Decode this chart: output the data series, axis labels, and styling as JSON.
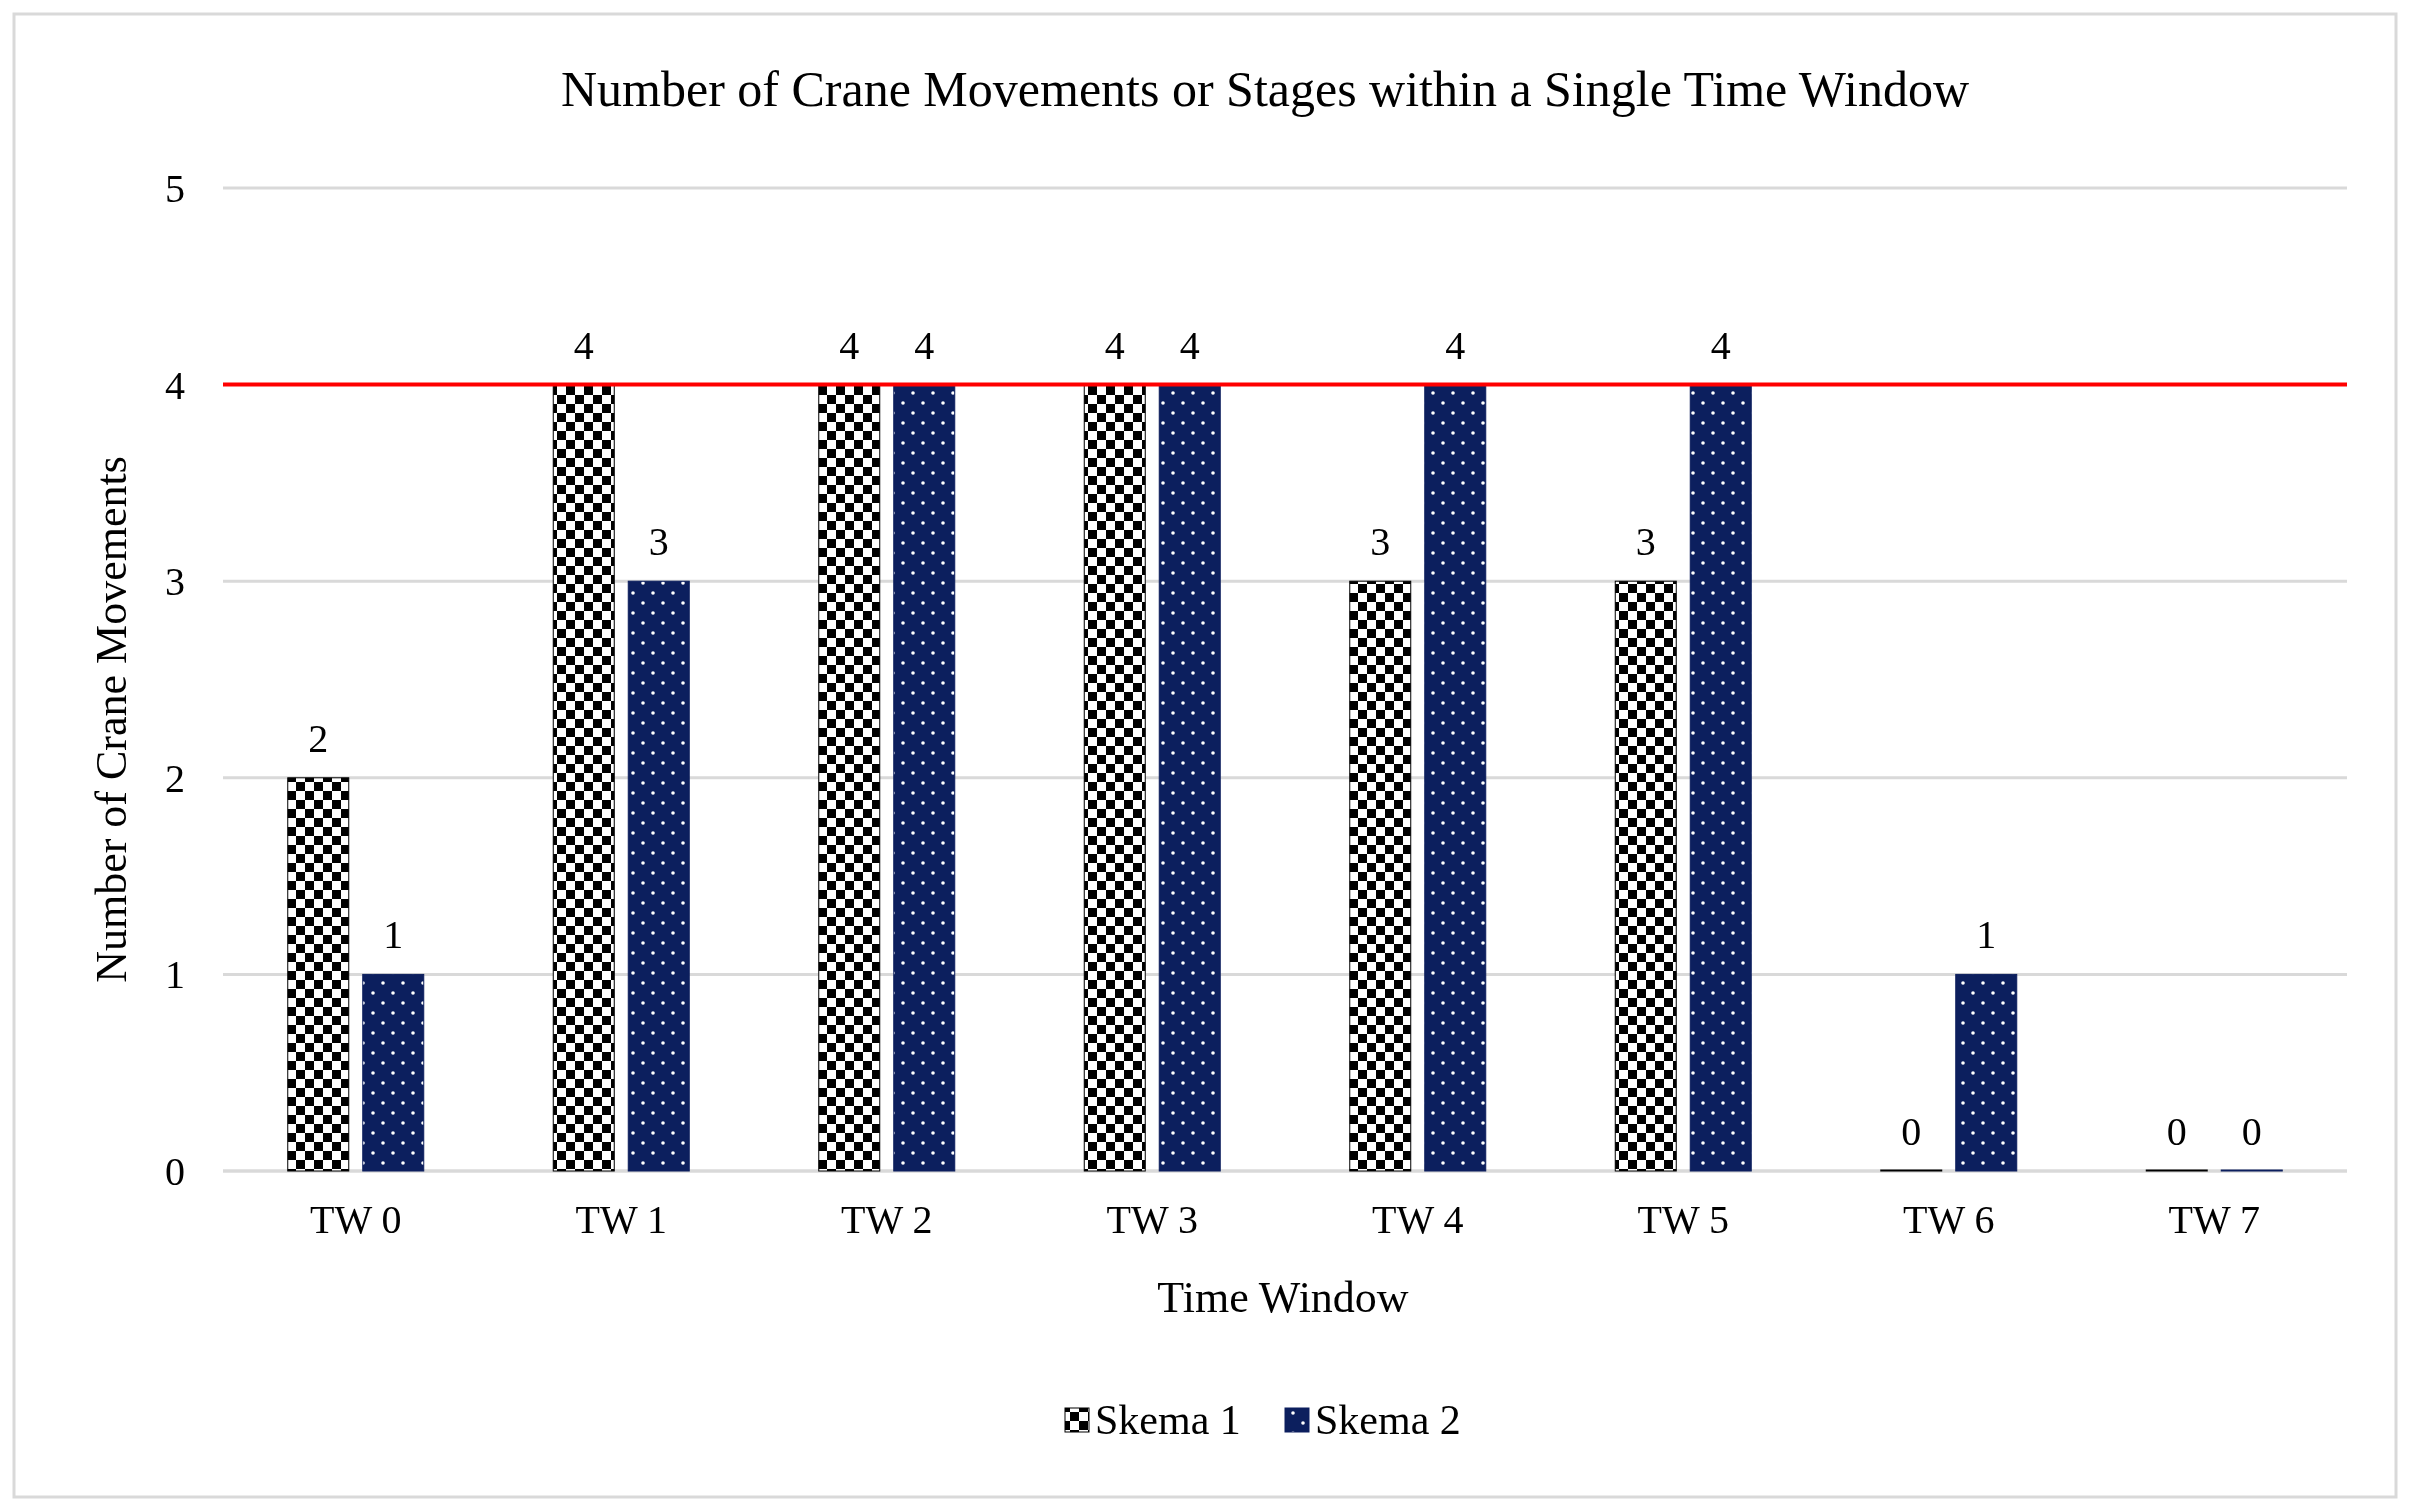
{
  "chart_data": {
    "type": "bar",
    "title": "Number of Crane Movements or Stages within a Single Time Window",
    "xlabel": "Time Window",
    "ylabel": "Number of Crane Movements",
    "categories": [
      "TW 0",
      "TW 1",
      "TW 2",
      "TW 3",
      "TW 4",
      "TW 5",
      "TW 6",
      "TW 7"
    ],
    "series": [
      {
        "name": "Skema 1",
        "color": "#000000",
        "values": [
          2,
          4,
          4,
          4,
          3,
          3,
          0,
          0
        ]
      },
      {
        "name": "Skema 2",
        "color": "#0c1f5e",
        "values": [
          1,
          3,
          4,
          4,
          4,
          4,
          1,
          0
        ]
      }
    ],
    "ylim": [
      0,
      5
    ],
    "yticks": [
      0,
      1,
      2,
      3,
      4,
      5
    ],
    "grid": "y",
    "legend": "bottom",
    "data_labels": true,
    "ref_lines": [
      {
        "axis": "y",
        "value": 4,
        "color": "#ff0000"
      }
    ]
  }
}
